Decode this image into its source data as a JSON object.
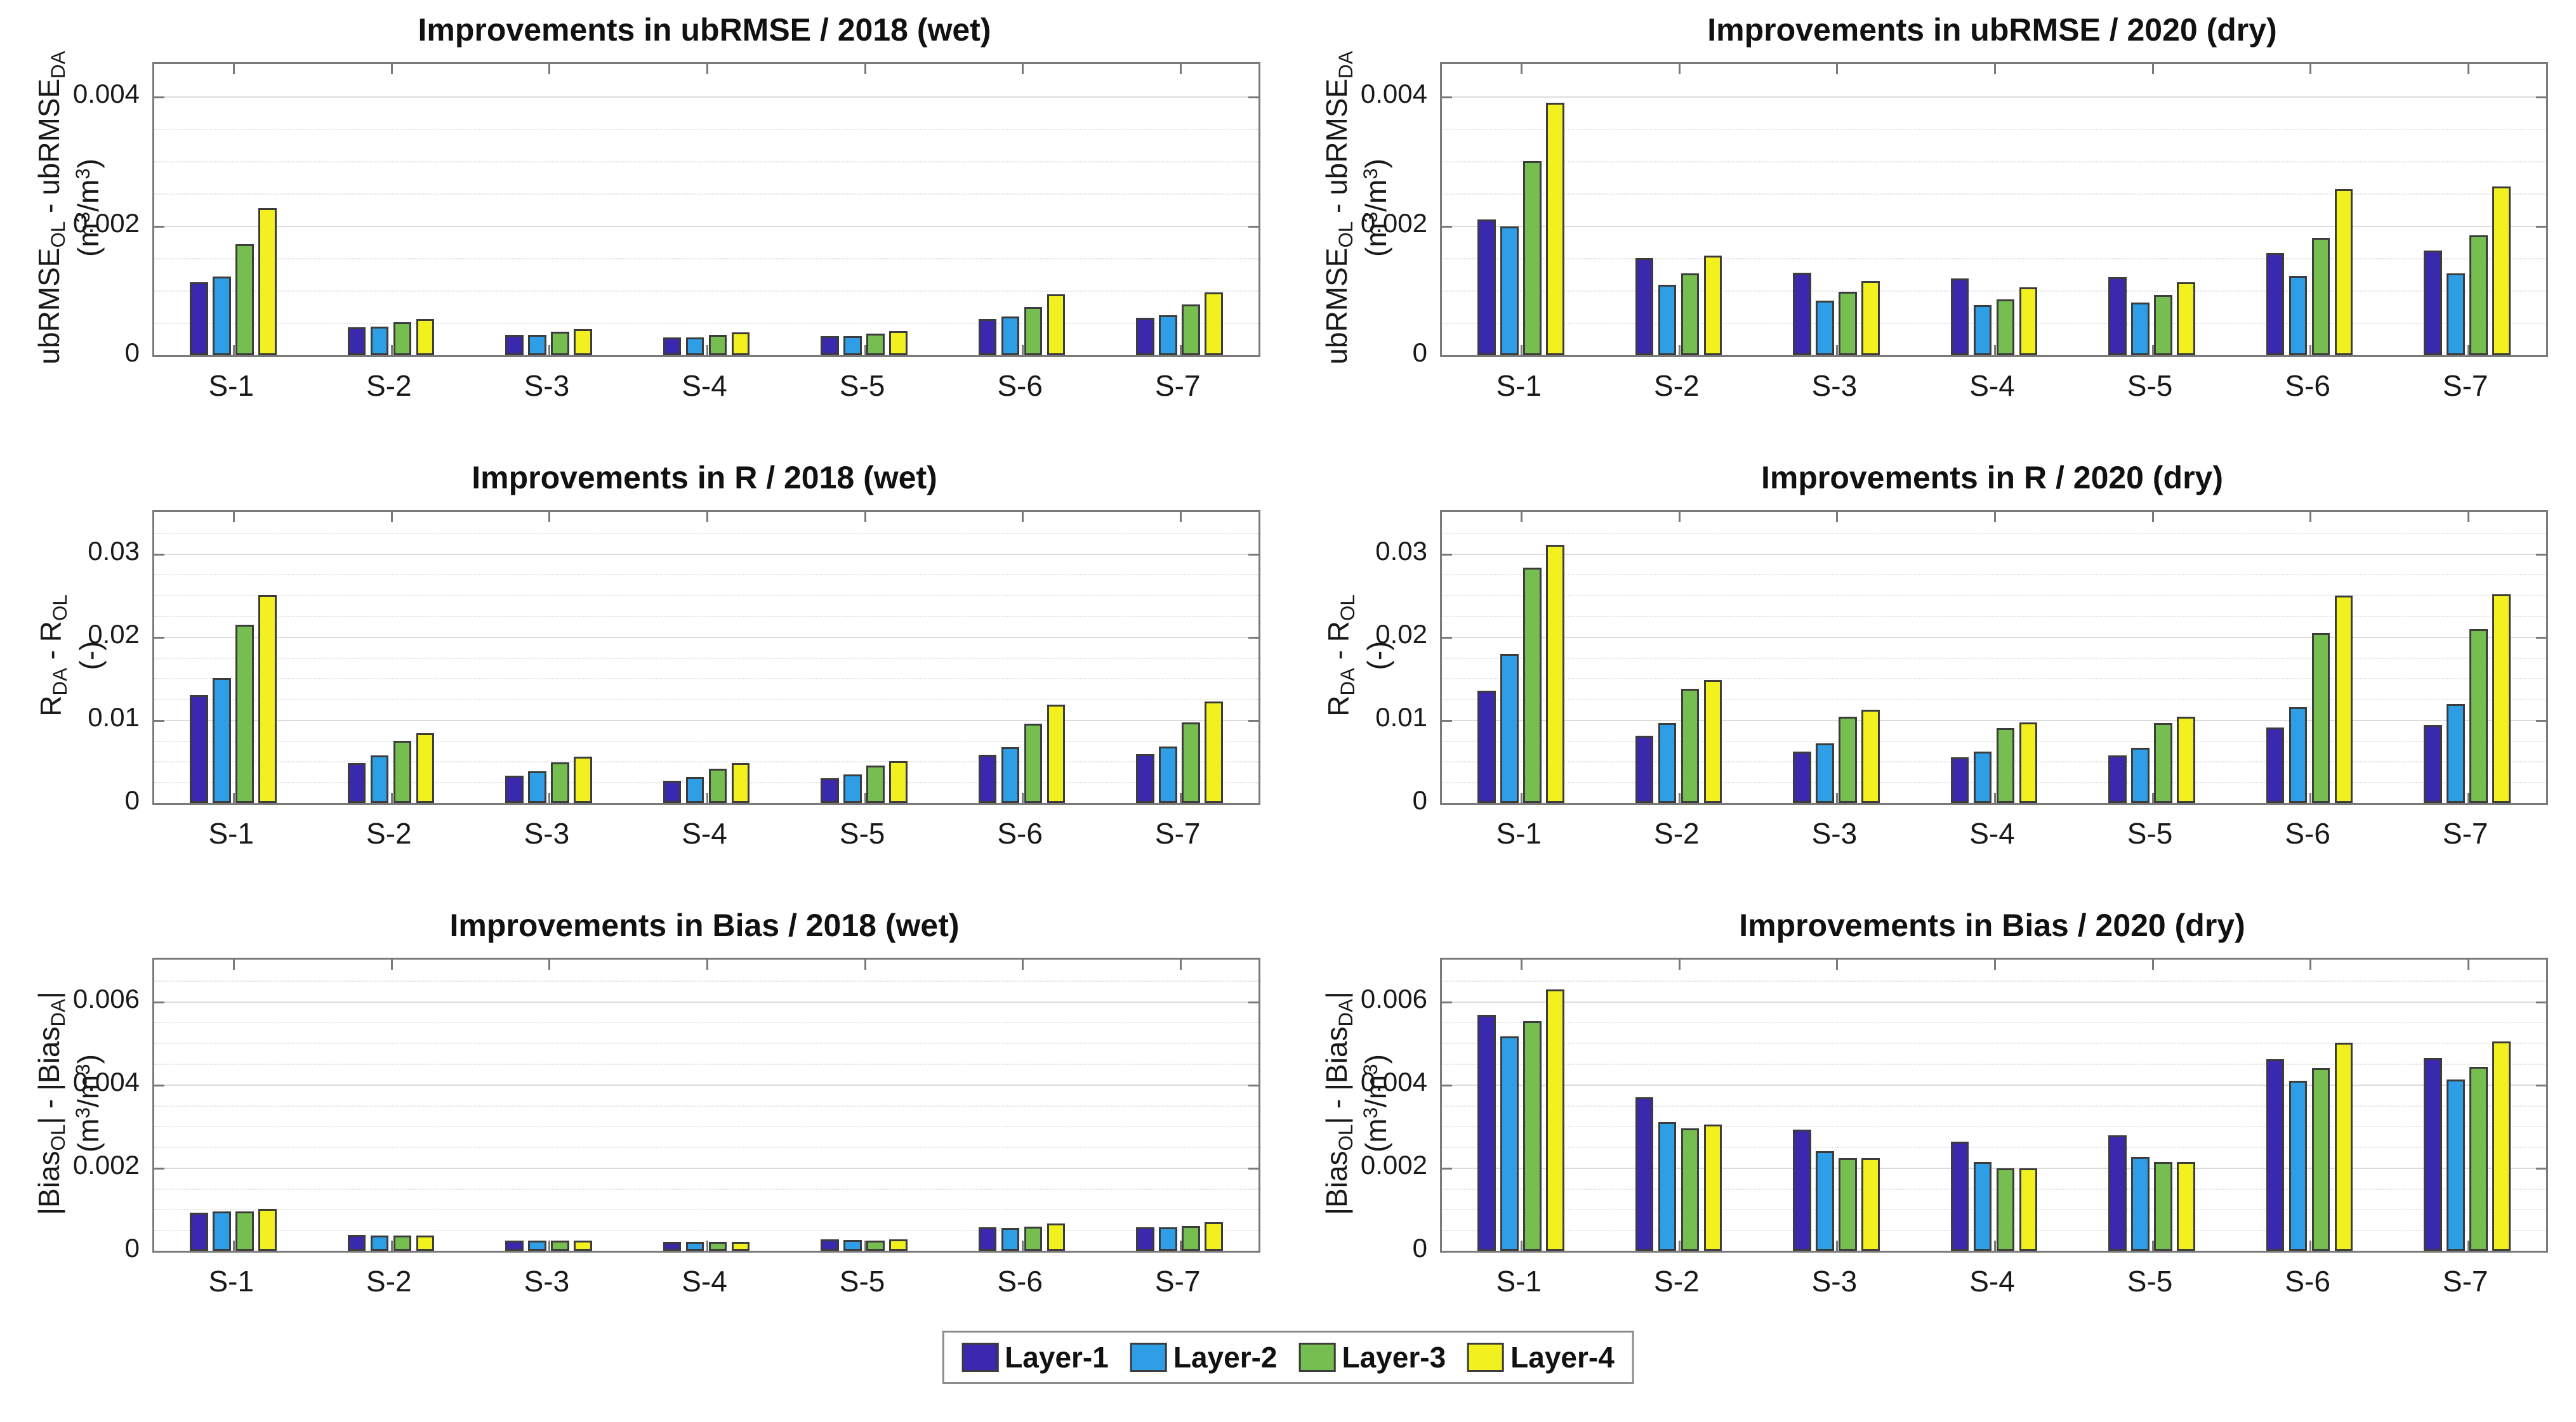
{
  "page": {
    "background": "#ffffff"
  },
  "colors": {
    "layer1": "#3A28AE",
    "layer2": "#2E9FE6",
    "layer3": "#77BE51",
    "layer4": "#F2F01E",
    "bar_edge": "#3c3c3c",
    "axis_box": "#7a7a7a",
    "grid_major": "#dcdcdc",
    "grid_minor": "#e2e2e2",
    "text": "#191919"
  },
  "legend": {
    "position": "south-outside-centered",
    "items": [
      {
        "label": "Layer-1",
        "color": "#3A28AE"
      },
      {
        "label": "Layer-2",
        "color": "#2E9FE6"
      },
      {
        "label": "Layer-3",
        "color": "#77BE51"
      },
      {
        "label": "Layer-4",
        "color": "#F2F01E"
      }
    ]
  },
  "chart_data": [
    {
      "type": "bar",
      "title": "Improvements in ubRMSE / 2018 (wet)",
      "ylabel": "ubRMSE_{OL} - ubRMSE_{DA}",
      "yunits": "(m^{3}/m^{3})",
      "xlabel": "",
      "categories": [
        "S-1",
        "S-2",
        "S-3",
        "S-4",
        "S-5",
        "S-6",
        "S-7"
      ],
      "ylim": [
        0,
        0.0045
      ],
      "yticks": [
        {
          "value": 0,
          "label": "0"
        },
        {
          "value": 0.002,
          "label": "0.002"
        },
        {
          "value": 0.004,
          "label": "0.004"
        }
      ],
      "grid_minor_step": 0.0005,
      "grid": "on",
      "series": [
        {
          "name": "Layer-1",
          "values": [
            0.00113,
            0.00043,
            0.00031,
            0.00027,
            0.00029,
            0.00056,
            0.00058
          ]
        },
        {
          "name": "Layer-2",
          "values": [
            0.00122,
            0.00044,
            0.00031,
            0.00027,
            0.00029,
            0.0006,
            0.00062
          ]
        },
        {
          "name": "Layer-3",
          "values": [
            0.00172,
            0.00051,
            0.00036,
            0.00031,
            0.00033,
            0.00075,
            0.00078
          ]
        },
        {
          "name": "Layer-4",
          "values": [
            0.00227,
            0.00056,
            0.0004,
            0.00035,
            0.00037,
            0.00094,
            0.00097
          ]
        }
      ]
    },
    {
      "type": "bar",
      "title": "Improvements in ubRMSE / 2020 (dry)",
      "ylabel": "ubRMSE_{OL} - ubRMSE_{DA}",
      "yunits": "(m^{3}/m^{3})",
      "xlabel": "",
      "categories": [
        "S-1",
        "S-2",
        "S-3",
        "S-4",
        "S-5",
        "S-6",
        "S-7"
      ],
      "ylim": [
        0,
        0.0045
      ],
      "yticks": [
        {
          "value": 0,
          "label": "0"
        },
        {
          "value": 0.002,
          "label": "0.002"
        },
        {
          "value": 0.004,
          "label": "0.004"
        }
      ],
      "grid_minor_step": 0.0005,
      "grid": "on",
      "series": [
        {
          "name": "Layer-1",
          "values": [
            0.0021,
            0.0015,
            0.00127,
            0.00119,
            0.00121,
            0.00158,
            0.00162
          ]
        },
        {
          "name": "Layer-2",
          "values": [
            0.00199,
            0.00109,
            0.00084,
            0.00077,
            0.00081,
            0.00123,
            0.00126
          ]
        },
        {
          "name": "Layer-3",
          "values": [
            0.003,
            0.00126,
            0.00098,
            0.00086,
            0.00093,
            0.00181,
            0.00185
          ]
        },
        {
          "name": "Layer-4",
          "values": [
            0.0039,
            0.00154,
            0.00115,
            0.00105,
            0.00113,
            0.00257,
            0.00261
          ]
        }
      ]
    },
    {
      "type": "bar",
      "title": "Improvements in R / 2018 (wet)",
      "ylabel": "R_{DA} - R_{OL}",
      "yunits": "(-)",
      "xlabel": "",
      "categories": [
        "S-1",
        "S-2",
        "S-3",
        "S-4",
        "S-5",
        "S-6",
        "S-7"
      ],
      "ylim": [
        0,
        0.035
      ],
      "yticks": [
        {
          "value": 0,
          "label": "0"
        },
        {
          "value": 0.01,
          "label": "0.01"
        },
        {
          "value": 0.02,
          "label": "0.02"
        },
        {
          "value": 0.03,
          "label": "0.03"
        }
      ],
      "grid_minor_step": 0.0025,
      "grid": "on",
      "series": [
        {
          "name": "Layer-1",
          "values": [
            0.013,
            0.0048,
            0.0033,
            0.0027,
            0.003,
            0.0058,
            0.0059
          ]
        },
        {
          "name": "Layer-2",
          "values": [
            0.015,
            0.0057,
            0.0038,
            0.0031,
            0.0034,
            0.0067,
            0.0068
          ]
        },
        {
          "name": "Layer-3",
          "values": [
            0.0214,
            0.0075,
            0.0049,
            0.0041,
            0.0045,
            0.0095,
            0.0097
          ]
        },
        {
          "name": "Layer-4",
          "values": [
            0.025,
            0.0084,
            0.0056,
            0.0048,
            0.005,
            0.0118,
            0.0122
          ]
        }
      ]
    },
    {
      "type": "bar",
      "title": "Improvements in R / 2020 (dry)",
      "ylabel": "R_{DA} - R_{OL}",
      "yunits": "(-)",
      "xlabel": "",
      "categories": [
        "S-1",
        "S-2",
        "S-3",
        "S-4",
        "S-5",
        "S-6",
        "S-7"
      ],
      "ylim": [
        0,
        0.035
      ],
      "yticks": [
        {
          "value": 0,
          "label": "0"
        },
        {
          "value": 0.01,
          "label": "0.01"
        },
        {
          "value": 0.02,
          "label": "0.02"
        },
        {
          "value": 0.03,
          "label": "0.03"
        }
      ],
      "grid_minor_step": 0.0025,
      "grid": "on",
      "series": [
        {
          "name": "Layer-1",
          "values": [
            0.0135,
            0.0081,
            0.0062,
            0.0055,
            0.0057,
            0.0091,
            0.0094
          ]
        },
        {
          "name": "Layer-2",
          "values": [
            0.0179,
            0.0096,
            0.0072,
            0.0062,
            0.0066,
            0.0115,
            0.0119
          ]
        },
        {
          "name": "Layer-3",
          "values": [
            0.0283,
            0.0137,
            0.0104,
            0.009,
            0.0096,
            0.0204,
            0.0209
          ]
        },
        {
          "name": "Layer-4",
          "values": [
            0.031,
            0.0148,
            0.0112,
            0.0097,
            0.0104,
            0.0249,
            0.0251
          ]
        }
      ]
    },
    {
      "type": "bar",
      "title": "Improvements in Bias / 2018 (wet)",
      "ylabel": "|Bias_{OL}| - |Bias_{DA}|",
      "yunits": "(m^{3}/m^{3})",
      "xlabel": "",
      "categories": [
        "S-1",
        "S-2",
        "S-3",
        "S-4",
        "S-5",
        "S-6",
        "S-7"
      ],
      "ylim": [
        0,
        0.007
      ],
      "yticks": [
        {
          "value": 0,
          "label": "0"
        },
        {
          "value": 0.002,
          "label": "0.002"
        },
        {
          "value": 0.004,
          "label": "0.004"
        },
        {
          "value": 0.006,
          "label": "0.006"
        }
      ],
      "grid_minor_step": 0.0005,
      "grid": "on",
      "series": [
        {
          "name": "Layer-1",
          "values": [
            0.00091,
            0.00038,
            0.00025,
            0.00022,
            0.00028,
            0.00056,
            0.00057
          ]
        },
        {
          "name": "Layer-2",
          "values": [
            0.00094,
            0.00037,
            0.00025,
            0.00021,
            0.00026,
            0.00055,
            0.00057
          ]
        },
        {
          "name": "Layer-3",
          "values": [
            0.00095,
            0.00036,
            0.00024,
            0.00021,
            0.00025,
            0.00058,
            0.0006
          ]
        },
        {
          "name": "Layer-4",
          "values": [
            0.00101,
            0.00037,
            0.00024,
            0.00022,
            0.00028,
            0.00066,
            0.00068
          ]
        }
      ]
    },
    {
      "type": "bar",
      "title": "Improvements in Bias / 2020 (dry)",
      "ylabel": "|Bias_{OL}| - |Bias_{DA}|",
      "yunits": "(m^{3}/m^{3})",
      "xlabel": "",
      "categories": [
        "S-1",
        "S-2",
        "S-3",
        "S-4",
        "S-5",
        "S-6",
        "S-7"
      ],
      "ylim": [
        0,
        0.007
      ],
      "yticks": [
        {
          "value": 0,
          "label": "0"
        },
        {
          "value": 0.002,
          "label": "0.002"
        },
        {
          "value": 0.004,
          "label": "0.004"
        },
        {
          "value": 0.006,
          "label": "0.006"
        }
      ],
      "grid_minor_step": 0.0005,
      "grid": "on",
      "series": [
        {
          "name": "Layer-1",
          "values": [
            0.00568,
            0.00369,
            0.00291,
            0.00263,
            0.00277,
            0.0046,
            0.00463
          ]
        },
        {
          "name": "Layer-2",
          "values": [
            0.00516,
            0.00309,
            0.0024,
            0.00214,
            0.00225,
            0.00409,
            0.00412
          ]
        },
        {
          "name": "Layer-3",
          "values": [
            0.00552,
            0.00295,
            0.00223,
            0.00199,
            0.00213,
            0.0044,
            0.00442
          ]
        },
        {
          "name": "Layer-4",
          "values": [
            0.00628,
            0.00303,
            0.00223,
            0.00199,
            0.00213,
            0.005,
            0.00504
          ]
        }
      ]
    }
  ]
}
